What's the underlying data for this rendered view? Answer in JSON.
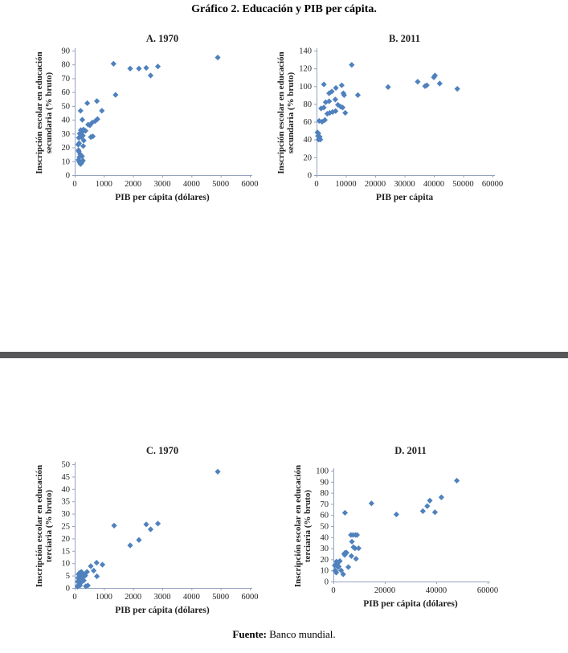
{
  "figure": {
    "title": "Gráfico 2. Educación y PIB per cápita."
  },
  "footer": {
    "label": "Fuente:",
    "text": " Banco mundial."
  },
  "theme": {
    "marker_color": "#4F81BD",
    "axis_color": "#95A3C0",
    "tick_text_color": "#1f1f1f",
    "divider_color": "#58585a"
  },
  "chart_data": [
    {
      "type": "scatter",
      "panel": "A",
      "title": "A. 1970",
      "ylabel_lines": [
        "Inscripción escolar en educación",
        "secundaria (% bruto)"
      ],
      "xlabel": "PIB per cápita (dólares)",
      "xlim": [
        0,
        6000
      ],
      "xtick_step": 1000,
      "ylim": [
        0,
        90
      ],
      "ytick_step": 10,
      "grid": false,
      "legend": false,
      "points": [
        [
          130,
          18
        ],
        [
          140,
          17
        ],
        [
          160,
          13
        ],
        [
          190,
          15
        ],
        [
          230,
          14
        ],
        [
          250,
          13.5
        ],
        [
          130,
          11
        ],
        [
          150,
          10
        ],
        [
          175,
          9
        ],
        [
          200,
          8
        ],
        [
          220,
          8.5
        ],
        [
          250,
          9.5
        ],
        [
          280,
          10.5
        ],
        [
          120,
          22
        ],
        [
          150,
          23
        ],
        [
          290,
          21
        ],
        [
          310,
          25
        ],
        [
          140,
          27
        ],
        [
          230,
          27.5
        ],
        [
          280,
          28.5
        ],
        [
          550,
          27.5
        ],
        [
          620,
          28
        ],
        [
          170,
          30
        ],
        [
          250,
          31
        ],
        [
          210,
          32.5
        ],
        [
          300,
          33
        ],
        [
          370,
          32
        ],
        [
          260,
          40
        ],
        [
          460,
          36.5
        ],
        [
          520,
          36
        ],
        [
          600,
          38
        ],
        [
          700,
          39
        ],
        [
          780,
          40.5
        ],
        [
          200,
          46.5
        ],
        [
          930,
          46.5
        ],
        [
          430,
          52
        ],
        [
          760,
          53.5
        ],
        [
          1400,
          58
        ],
        [
          1330,
          80.5
        ],
        [
          1900,
          77
        ],
        [
          2200,
          77
        ],
        [
          2450,
          77.5
        ],
        [
          2850,
          78.5
        ],
        [
          2600,
          72
        ],
        [
          4900,
          85
        ]
      ]
    },
    {
      "type": "scatter",
      "panel": "B",
      "title": "B. 2011",
      "ylabel_lines": [
        "Inscripción escolar en educación",
        "secundaria (% bruto)"
      ],
      "xlabel": "PIB per cápita",
      "xlim": [
        0,
        60000
      ],
      "xtick_step": 10000,
      "ylim": [
        0,
        140
      ],
      "ytick_step": 20,
      "grid": false,
      "legend": false,
      "points": [
        [
          300,
          48
        ],
        [
          500,
          44
        ],
        [
          600,
          47
        ],
        [
          700,
          40
        ],
        [
          900,
          41
        ],
        [
          1100,
          43
        ],
        [
          1300,
          40
        ],
        [
          900,
          61
        ],
        [
          1900,
          60
        ],
        [
          2850,
          62
        ],
        [
          1560,
          75
        ],
        [
          2470,
          76
        ],
        [
          3120,
          82
        ],
        [
          4300,
          83
        ],
        [
          3670,
          69
        ],
        [
          4500,
          70
        ],
        [
          5500,
          71
        ],
        [
          6500,
          72
        ],
        [
          9800,
          70
        ],
        [
          7300,
          79
        ],
        [
          8200,
          77
        ],
        [
          8900,
          76
        ],
        [
          4300,
          92
        ],
        [
          5200,
          94
        ],
        [
          6400,
          85
        ],
        [
          6600,
          98
        ],
        [
          8600,
          101
        ],
        [
          9150,
          92
        ],
        [
          9400,
          90
        ],
        [
          2500,
          102
        ],
        [
          12000,
          124
        ],
        [
          14100,
          90
        ],
        [
          24400,
          99
        ],
        [
          34500,
          105
        ],
        [
          37000,
          100
        ],
        [
          37600,
          101
        ],
        [
          40000,
          110
        ],
        [
          40400,
          112
        ],
        [
          42000,
          103
        ],
        [
          48000,
          97
        ]
      ]
    },
    {
      "type": "scatter",
      "panel": "C",
      "title": "C. 1970",
      "ylabel_lines": [
        "Inscripción escolar en educación",
        "terciaria (% bruto)"
      ],
      "xlabel": "PIB per cápita (dólares)",
      "xlim": [
        0,
        6000
      ],
      "xtick_step": 1000,
      "ylim": [
        0,
        50
      ],
      "ytick_step": 5,
      "grid": false,
      "legend": false,
      "points": [
        [
          100,
          0.5
        ],
        [
          120,
          1
        ],
        [
          150,
          1.5
        ],
        [
          180,
          1
        ],
        [
          380,
          0.7
        ],
        [
          450,
          1
        ],
        [
          110,
          2.5
        ],
        [
          140,
          3
        ],
        [
          170,
          2.5
        ],
        [
          200,
          2
        ],
        [
          120,
          4
        ],
        [
          150,
          4.5
        ],
        [
          180,
          5
        ],
        [
          130,
          5.5
        ],
        [
          160,
          6
        ],
        [
          200,
          6.3
        ],
        [
          230,
          6.5
        ],
        [
          260,
          6
        ],
        [
          300,
          5.5
        ],
        [
          250,
          4
        ],
        [
          310,
          3
        ],
        [
          360,
          5
        ],
        [
          420,
          6.5
        ],
        [
          550,
          8.8
        ],
        [
          650,
          7
        ],
        [
          750,
          10.2
        ],
        [
          950,
          9.4
        ],
        [
          760,
          4.7
        ],
        [
          1350,
          25.2
        ],
        [
          1900,
          17.2
        ],
        [
          2200,
          19.4
        ],
        [
          2450,
          25.7
        ],
        [
          2600,
          23.7
        ],
        [
          2850,
          26
        ],
        [
          4900,
          47
        ]
      ]
    },
    {
      "type": "scatter",
      "panel": "D",
      "title": "D. 2011",
      "ylabel_lines": [
        "Inscripción escolar en educación",
        "terciaria (% bruto)"
      ],
      "xlabel": "PIB per cápita (dólares)",
      "xlim": [
        0,
        60000
      ],
      "xtick_step": 20000,
      "ylim": [
        0,
        100
      ],
      "ytick_step": 10,
      "grid": false,
      "legend": false,
      "points": [
        [
          700,
          10
        ],
        [
          900,
          9
        ],
        [
          1100,
          8
        ],
        [
          500,
          14.5
        ],
        [
          1300,
          15
        ],
        [
          1500,
          16
        ],
        [
          1800,
          13
        ],
        [
          2100,
          13.5
        ],
        [
          5800,
          13
        ],
        [
          1200,
          18
        ],
        [
          2500,
          18.5
        ],
        [
          3800,
          6.5
        ],
        [
          3000,
          10
        ],
        [
          4200,
          25
        ],
        [
          4600,
          26
        ],
        [
          5100,
          26
        ],
        [
          4400,
          24
        ],
        [
          6800,
          42
        ],
        [
          7600,
          42
        ],
        [
          8600,
          42
        ],
        [
          9200,
          42
        ],
        [
          7200,
          36
        ],
        [
          7800,
          31
        ],
        [
          8400,
          30
        ],
        [
          9800,
          30
        ],
        [
          7000,
          23
        ],
        [
          8800,
          20.5
        ],
        [
          4500,
          62
        ],
        [
          14800,
          70.5
        ],
        [
          24500,
          60.5
        ],
        [
          34800,
          63.5
        ],
        [
          36500,
          68
        ],
        [
          37500,
          73
        ],
        [
          39500,
          62.5
        ],
        [
          42000,
          76
        ],
        [
          48000,
          91
        ]
      ]
    }
  ]
}
